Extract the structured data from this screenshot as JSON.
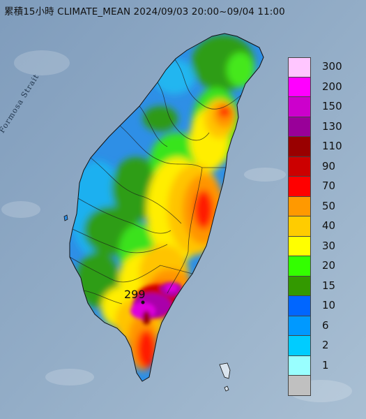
{
  "title": "累積15小時 CLIMATE_MEAN 2024/09/03 20:00~09/04 11:00",
  "map_labels": {
    "strait": "Formosa Strait",
    "peak_value": "299"
  },
  "legend": {
    "bins": [
      {
        "label": "300",
        "color": "#ffc6ff"
      },
      {
        "label": "200",
        "color": "#ff00ff"
      },
      {
        "label": "150",
        "color": "#cc00cc"
      },
      {
        "label": "130",
        "color": "#990099"
      },
      {
        "label": "110",
        "color": "#990000"
      },
      {
        "label": "90",
        "color": "#cc0000"
      },
      {
        "label": "70",
        "color": "#ff0000"
      },
      {
        "label": "50",
        "color": "#ff9900"
      },
      {
        "label": "40",
        "color": "#ffcc00"
      },
      {
        "label": "30",
        "color": "#ffff00"
      },
      {
        "label": "20",
        "color": "#33ff00"
      },
      {
        "label": "15",
        "color": "#339900"
      },
      {
        "label": "10",
        "color": "#0066ff"
      },
      {
        "label": "6",
        "color": "#0099ff"
      },
      {
        "label": "2",
        "color": "#00ccff"
      },
      {
        "label": "1",
        "color": "#99ffff"
      },
      {
        "label": "",
        "color": "#c0c0c0"
      }
    ]
  },
  "colors": {
    "sea": "#8fa9c4",
    "island_base": "#2e8fe6"
  }
}
